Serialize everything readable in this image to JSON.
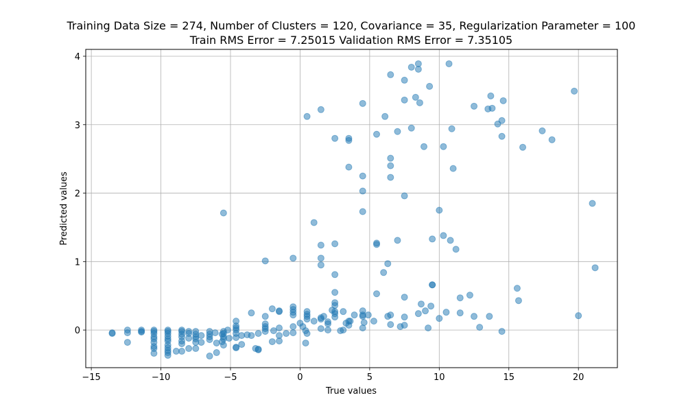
{
  "chart_data": {
    "type": "scatter",
    "title": {
      "line1": "Training Data Size = 274, Number of Clusters = 120, Covariance = 35, Regularization Parameter = 100",
      "line2": "Train RMS Error = 7.25015 Validation RMS Error = 7.35105"
    },
    "xlabel": "True values",
    "ylabel": "Predicted values",
    "xlim": [
      -15.4,
      22.8
    ],
    "ylim": [
      -0.55,
      4.1
    ],
    "xticks": [
      -15,
      -10,
      -5,
      0,
      5,
      10,
      15,
      20
    ],
    "yticks": [
      0,
      1,
      2,
      3,
      4
    ],
    "grid": true,
    "marker_color": "#1f77b4",
    "marker_alpha": 0.5,
    "points": [
      [
        -13.5,
        -0.05
      ],
      [
        -13.5,
        -0.04
      ],
      [
        -12.4,
        0.0
      ],
      [
        -12.4,
        -0.04
      ],
      [
        -12.4,
        -0.18
      ],
      [
        -11.4,
        0.0
      ],
      [
        -11.4,
        -0.02
      ],
      [
        -11.4,
        -0.03
      ],
      [
        -10.5,
        0.0
      ],
      [
        -10.5,
        -0.02
      ],
      [
        -10.5,
        -0.05
      ],
      [
        -10.5,
        -0.1
      ],
      [
        -10.5,
        -0.13
      ],
      [
        -10.5,
        -0.18
      ],
      [
        -10.5,
        -0.24
      ],
      [
        -10.5,
        -0.27
      ],
      [
        -10.5,
        -0.34
      ],
      [
        -9.5,
        0.0
      ],
      [
        -9.5,
        -0.02
      ],
      [
        -9.5,
        -0.05
      ],
      [
        -9.5,
        -0.09
      ],
      [
        -9.5,
        -0.13
      ],
      [
        -9.5,
        -0.16
      ],
      [
        -9.5,
        -0.22
      ],
      [
        -9.5,
        -0.26
      ],
      [
        -9.5,
        -0.3
      ],
      [
        -9.5,
        -0.33
      ],
      [
        -9.5,
        -0.37
      ],
      [
        -8.9,
        -0.31
      ],
      [
        -8.5,
        0.0
      ],
      [
        -8.5,
        -0.02
      ],
      [
        -8.5,
        -0.06
      ],
      [
        -8.5,
        -0.1
      ],
      [
        -8.5,
        -0.16
      ],
      [
        -8.5,
        -0.2
      ],
      [
        -8.5,
        -0.31
      ],
      [
        -8.0,
        -0.02
      ],
      [
        -8.0,
        -0.05
      ],
      [
        -8.0,
        -0.12
      ],
      [
        -8.0,
        -0.27
      ],
      [
        -7.5,
        -0.02
      ],
      [
        -7.5,
        -0.06
      ],
      [
        -7.5,
        -0.1
      ],
      [
        -7.5,
        -0.13
      ],
      [
        -7.5,
        -0.18
      ],
      [
        -7.5,
        -0.27
      ],
      [
        -7.1,
        -0.08
      ],
      [
        -7.1,
        -0.18
      ],
      [
        -6.5,
        -0.02
      ],
      [
        -6.5,
        -0.06
      ],
      [
        -6.5,
        -0.1
      ],
      [
        -6.5,
        -0.14
      ],
      [
        -6.5,
        -0.38
      ],
      [
        -6.1,
        -0.04
      ],
      [
        -6.0,
        -0.19
      ],
      [
        -6.0,
        -0.33
      ],
      [
        -5.6,
        -0.06
      ],
      [
        -5.6,
        -0.17
      ],
      [
        -5.5,
        -0.02
      ],
      [
        -5.5,
        -0.05
      ],
      [
        -5.5,
        -0.1
      ],
      [
        -5.5,
        -0.13
      ],
      [
        -5.5,
        -0.22
      ],
      [
        -5.5,
        1.71
      ],
      [
        -5.1,
        -0.12
      ],
      [
        -5.2,
        -0.0
      ],
      [
        -4.6,
        0.13
      ],
      [
        -4.6,
        0.06
      ],
      [
        -4.6,
        0.03
      ],
      [
        -4.6,
        0.0
      ],
      [
        -4.6,
        -0.05
      ],
      [
        -4.6,
        -0.11
      ],
      [
        -4.6,
        -0.25
      ],
      [
        -4.6,
        -0.26
      ],
      [
        -4.2,
        -0.08
      ],
      [
        -4.2,
        -0.21
      ],
      [
        -3.8,
        -0.07
      ],
      [
        -3.5,
        0.25
      ],
      [
        -3.5,
        -0.08
      ],
      [
        -3.2,
        -0.27
      ],
      [
        -3.0,
        -0.29
      ],
      [
        -3.0,
        -0.28
      ],
      [
        -3.0,
        -0.05
      ],
      [
        -2.5,
        1.01
      ],
      [
        -2.5,
        0.2
      ],
      [
        -2.5,
        0.09
      ],
      [
        -2.5,
        0.05
      ],
      [
        -2.5,
        0.02
      ],
      [
        -2.5,
        -0.02
      ],
      [
        -2.0,
        0.31
      ],
      [
        -2.0,
        -0.17
      ],
      [
        -1.9,
        -0.01
      ],
      [
        -1.5,
        0.27
      ],
      [
        -1.5,
        0.28
      ],
      [
        -1.5,
        0.03
      ],
      [
        -1.5,
        -0.08
      ],
      [
        -1.5,
        -0.16
      ],
      [
        -1.0,
        -0.05
      ],
      [
        -0.5,
        1.05
      ],
      [
        -0.5,
        0.34
      ],
      [
        -0.5,
        0.3
      ],
      [
        -0.5,
        0.26
      ],
      [
        -0.5,
        0.22
      ],
      [
        -0.5,
        0.05
      ],
      [
        -0.5,
        -0.04
      ],
      [
        0.0,
        0.1
      ],
      [
        0.2,
        0.05
      ],
      [
        0.4,
        -0.01
      ],
      [
        0.4,
        -0.19
      ],
      [
        0.5,
        3.12
      ],
      [
        0.5,
        0.27
      ],
      [
        0.5,
        0.23
      ],
      [
        0.5,
        0.2
      ],
      [
        0.5,
        0.16
      ],
      [
        0.5,
        -0.05
      ],
      [
        1.0,
        1.57
      ],
      [
        1.0,
        0.13
      ],
      [
        1.5,
        3.22
      ],
      [
        1.5,
        1.24
      ],
      [
        1.5,
        1.05
      ],
      [
        1.5,
        0.95
      ],
      [
        1.5,
        0.18
      ],
      [
        1.5,
        0.16
      ],
      [
        1.5,
        0.02
      ],
      [
        1.7,
        0.2
      ],
      [
        2.0,
        0.12
      ],
      [
        2.0,
        0.09
      ],
      [
        2.0,
        0.0
      ],
      [
        2.5,
        2.8
      ],
      [
        2.5,
        1.26
      ],
      [
        2.5,
        0.81
      ],
      [
        2.5,
        0.55
      ],
      [
        2.5,
        0.4
      ],
      [
        2.5,
        0.36
      ],
      [
        2.5,
        0.27
      ],
      [
        2.5,
        0.24
      ],
      [
        2.5,
        0.19
      ],
      [
        2.3,
        0.29
      ],
      [
        2.9,
        -0.01
      ],
      [
        3.1,
        0.27
      ],
      [
        3.1,
        0.0
      ],
      [
        3.3,
        0.1
      ],
      [
        3.5,
        2.8
      ],
      [
        3.5,
        2.77
      ],
      [
        3.5,
        2.38
      ],
      [
        3.5,
        0.13
      ],
      [
        3.5,
        0.07
      ],
      [
        3.6,
        0.13
      ],
      [
        3.9,
        0.22
      ],
      [
        4.5,
        3.31
      ],
      [
        4.5,
        2.25
      ],
      [
        4.5,
        2.03
      ],
      [
        4.5,
        1.73
      ],
      [
        4.5,
        0.28
      ],
      [
        4.5,
        0.22
      ],
      [
        4.5,
        0.2
      ],
      [
        4.5,
        0.03
      ],
      [
        4.6,
        0.11
      ],
      [
        4.9,
        0.22
      ],
      [
        5.5,
        2.86
      ],
      [
        5.5,
        1.27
      ],
      [
        5.5,
        1.25
      ],
      [
        5.5,
        0.53
      ],
      [
        5.3,
        0.13
      ],
      [
        6.1,
        3.12
      ],
      [
        6.0,
        0.84
      ],
      [
        6.3,
        0.97
      ],
      [
        6.5,
        3.73
      ],
      [
        6.5,
        2.51
      ],
      [
        6.5,
        2.4
      ],
      [
        6.5,
        2.23
      ],
      [
        6.5,
        0.22
      ],
      [
        6.3,
        0.2
      ],
      [
        6.5,
        0.08
      ],
      [
        7.0,
        2.9
      ],
      [
        7.0,
        1.31
      ],
      [
        7.2,
        0.05
      ],
      [
        7.5,
        3.65
      ],
      [
        7.5,
        3.36
      ],
      [
        7.5,
        1.96
      ],
      [
        7.5,
        0.48
      ],
      [
        7.5,
        0.19
      ],
      [
        7.5,
        0.07
      ],
      [
        8.0,
        3.84
      ],
      [
        8.0,
        2.95
      ],
      [
        8.3,
        3.4
      ],
      [
        8.5,
        3.89
      ],
      [
        8.5,
        3.81
      ],
      [
        8.6,
        3.32
      ],
      [
        8.5,
        0.24
      ],
      [
        8.7,
        0.38
      ],
      [
        8.9,
        2.68
      ],
      [
        9.0,
        0.28
      ],
      [
        9.2,
        0.03
      ],
      [
        9.3,
        3.56
      ],
      [
        9.5,
        1.33
      ],
      [
        9.5,
        0.66
      ],
      [
        9.5,
        0.66
      ],
      [
        9.4,
        0.35
      ],
      [
        10.0,
        1.75
      ],
      [
        10.0,
        0.17
      ],
      [
        10.3,
        2.68
      ],
      [
        10.3,
        1.38
      ],
      [
        10.5,
        0.26
      ],
      [
        10.7,
        3.89
      ],
      [
        10.8,
        1.31
      ],
      [
        10.9,
        2.94
      ],
      [
        11.0,
        2.36
      ],
      [
        11.2,
        1.18
      ],
      [
        11.5,
        0.47
      ],
      [
        11.5,
        0.25
      ],
      [
        12.2,
        0.51
      ],
      [
        12.5,
        3.27
      ],
      [
        12.5,
        0.2
      ],
      [
        12.9,
        0.04
      ],
      [
        13.5,
        3.23
      ],
      [
        13.6,
        0.2
      ],
      [
        13.7,
        3.42
      ],
      [
        13.8,
        3.24
      ],
      [
        14.2,
        3.01
      ],
      [
        14.5,
        3.06
      ],
      [
        14.5,
        2.83
      ],
      [
        14.5,
        -0.02
      ],
      [
        14.6,
        3.35
      ],
      [
        15.6,
        0.61
      ],
      [
        15.7,
        0.43
      ],
      [
        16.0,
        2.67
      ],
      [
        17.4,
        2.91
      ],
      [
        18.1,
        2.78
      ],
      [
        19.7,
        3.49
      ],
      [
        20.0,
        0.21
      ],
      [
        21.0,
        1.85
      ],
      [
        21.2,
        0.91
      ]
    ]
  }
}
